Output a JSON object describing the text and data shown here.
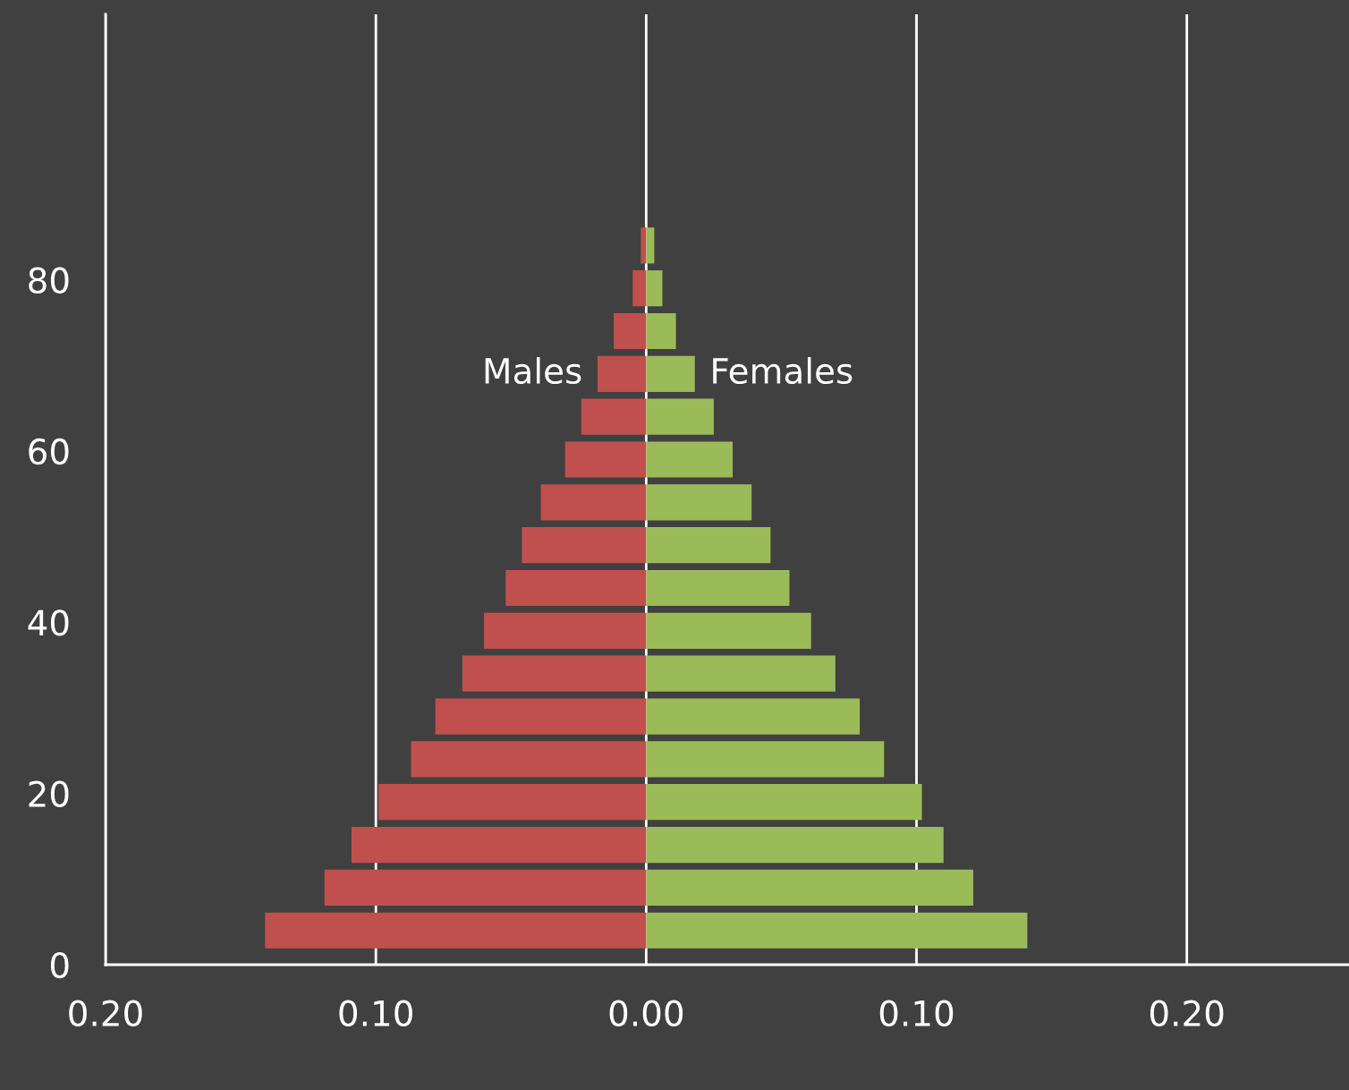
{
  "chart_data": {
    "type": "bar",
    "orientation": "horizontal",
    "stacked": true,
    "x": [
      4,
      9,
      14,
      19,
      24,
      29,
      34,
      39,
      44,
      49,
      54,
      59,
      64,
      69,
      74,
      79,
      84
    ],
    "series": [
      {
        "name": "Males",
        "color": "#c0504d",
        "values": [
          -0.141,
          -0.119,
          -0.109,
          -0.099,
          -0.087,
          -0.078,
          -0.068,
          -0.06,
          -0.052,
          -0.046,
          -0.039,
          -0.03,
          -0.024,
          -0.018,
          -0.012,
          -0.005,
          -0.002
        ]
      },
      {
        "name": "Females",
        "color": "#9bbb59",
        "values": [
          0.141,
          0.121,
          0.11,
          0.102,
          0.088,
          0.079,
          0.07,
          0.061,
          0.053,
          0.046,
          0.039,
          0.032,
          0.025,
          0.018,
          0.011,
          0.006,
          0.003
        ]
      }
    ],
    "xlim": [
      -0.2,
      0.26
    ],
    "xticks": [
      {
        "value": -0.2,
        "label": "0.20"
      },
      {
        "value": -0.1,
        "label": "0.10"
      },
      {
        "value": 0,
        "label": "0.00"
      },
      {
        "value": 0.1,
        "label": "0.10"
      },
      {
        "value": 0.2,
        "label": "0.20"
      }
    ],
    "ylim": [
      0,
      111
    ],
    "yticks": [
      0,
      20,
      40,
      60,
      80
    ],
    "grid": "x",
    "legend": false
  }
}
